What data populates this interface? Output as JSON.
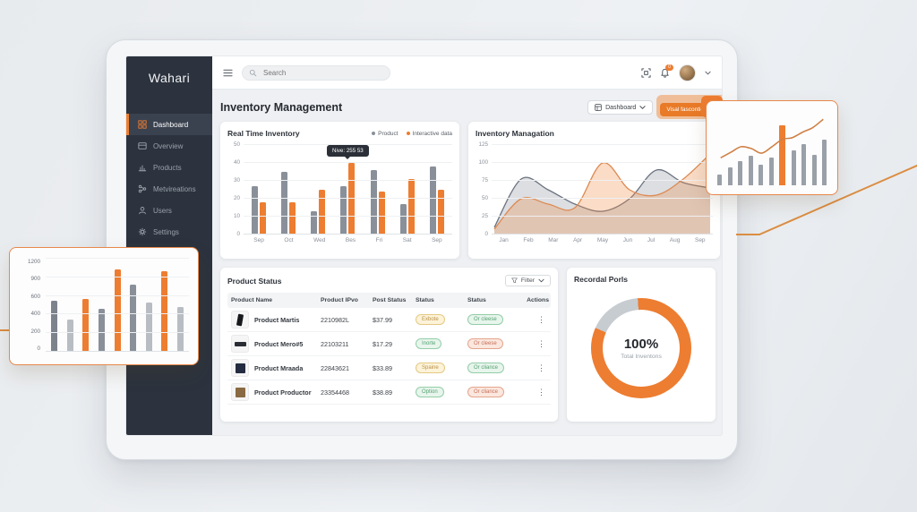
{
  "app": {
    "accent_color": "#ed7d31"
  },
  "sidebar": {
    "logo": "Wahari",
    "items": [
      {
        "label": "Dashboard",
        "icon": "grid-icon",
        "active": true
      },
      {
        "label": "Overview",
        "icon": "window-icon",
        "active": false
      },
      {
        "label": "Products",
        "icon": "bar-chart-icon",
        "active": false
      },
      {
        "label": "Metvireations",
        "icon": "share-icon",
        "active": false
      },
      {
        "label": "Users",
        "icon": "user-icon",
        "active": false
      },
      {
        "label": "Settings",
        "icon": "gear-icon",
        "active": false
      }
    ]
  },
  "topbar": {
    "search_placeholder": "Search",
    "notification_badge": "0"
  },
  "header": {
    "title": "Inventory Management",
    "dashboard_button": "Dashboard",
    "primary_button": "Visal fasconticon"
  },
  "product_status": {
    "title": "Product Status",
    "filter_label": "Filter",
    "columns": [
      "Product Name",
      "Product IPvo",
      "Post Status",
      "Status",
      "Status",
      "Actions"
    ],
    "rows": [
      {
        "name": "Product Martis",
        "ip": "2210982L",
        "post_status": "$37.99",
        "status1": {
          "label": "Exbote",
          "style": "yellow"
        },
        "status2": {
          "label": "Or cleese",
          "style": "green"
        },
        "thumb": {
          "color": "#17191d",
          "shape": "tall"
        }
      },
      {
        "name": "Product Mero#5",
        "ip": "22103211",
        "post_status": "$17.29",
        "status1": {
          "label": "Inorte",
          "style": "green"
        },
        "status2": {
          "label": "Or cleese",
          "style": "red"
        },
        "thumb": {
          "color": "#2a2d33",
          "shape": "wide"
        }
      },
      {
        "name": "Product Mraada",
        "ip": "22843621",
        "post_status": "$33.89",
        "status1": {
          "label": "Spaine",
          "style": "yellow"
        },
        "status2": {
          "label": "Or cliance",
          "style": "green"
        },
        "thumb": {
          "color": "#232c40",
          "shape": "square"
        }
      },
      {
        "name": "Product Productor",
        "ip": "23354468",
        "post_status": "$38.89",
        "status1": {
          "label": "Option",
          "style": "green"
        },
        "status2": {
          "label": "Or cliance",
          "style": "red"
        },
        "thumb": {
          "color": "#8a6a42",
          "shape": "square"
        }
      }
    ]
  },
  "recordal": {
    "title": "Recordal Porls",
    "value": "100%",
    "caption": "Total Inventons"
  },
  "chart_data": [
    {
      "id": "real_time_inventory",
      "type": "bar",
      "title": "Real Time Inventory",
      "categories": [
        "Sep",
        "Oct",
        "Wed",
        "Bes",
        "Fri",
        "Sat",
        "Sep"
      ],
      "series": [
        {
          "name": "Product",
          "color": "#8a9099",
          "values": [
            27,
            35,
            13,
            27,
            36,
            17,
            38
          ]
        },
        {
          "name": "Interactive data",
          "color": "#ed7d31",
          "values": [
            18,
            18,
            25,
            40,
            24,
            31,
            25
          ]
        }
      ],
      "ylim": [
        0,
        50
      ],
      "yticks": [
        0,
        10,
        20,
        30,
        40,
        50
      ],
      "legend_position": "top-right",
      "grid": true,
      "tooltip": {
        "text": "Nive: 255 53",
        "category_index": 3
      }
    },
    {
      "id": "inventory_managation",
      "type": "area",
      "title": "Inventory Managation",
      "categories": [
        "Jan",
        "Feb",
        "Mar",
        "Apr",
        "May",
        "Jun",
        "Jul",
        "Aug",
        "Sep"
      ],
      "series": [
        {
          "name": "Product",
          "color": "#6b727e",
          "fill": "rgba(130,138,150,0.28)",
          "values": [
            10,
            78,
            62,
            42,
            33,
            50,
            90,
            72,
            65
          ]
        },
        {
          "name": "Interactive data",
          "color": "#dd8a52",
          "fill": "rgba(238,140,70,0.30)",
          "values": [
            8,
            50,
            43,
            38,
            100,
            63,
            55,
            78,
            112
          ]
        }
      ],
      "ylim": [
        0,
        125
      ],
      "yticks": [
        0,
        25,
        50,
        75,
        100,
        125
      ],
      "grid": true
    },
    {
      "id": "recordal_porls",
      "type": "pie",
      "title": "Recordal Porls",
      "center_value": "100%",
      "center_caption": "Total Inventons",
      "arcs": [
        {
          "name": "filled",
          "color": "#ed7d31",
          "start_deg": 0,
          "end_deg": 294
        },
        {
          "name": "remainder",
          "color": "#c7ccd1",
          "start_deg": 294,
          "end_deg": 356
        },
        {
          "name": "filled-tail",
          "color": "#ed7d31",
          "start_deg": 356,
          "end_deg": 360
        }
      ]
    },
    {
      "id": "floating_left_bars",
      "type": "bar",
      "yticks": [
        1200,
        900,
        600,
        400,
        200,
        0
      ],
      "ylim": [
        0,
        1200
      ],
      "values": [
        660,
        420,
        680,
        550,
        1060,
        860,
        630,
        1040,
        580
      ],
      "colors": [
        "#7d838c",
        "#b8bdc3",
        "#ed7d31",
        "#8a9099",
        "#ed7d31",
        "#8a9099",
        "#b8bdc3",
        "#ed7d31",
        "#b8bdc3"
      ]
    },
    {
      "id": "floating_right_bars_line",
      "type": "bar",
      "ylim": [
        0,
        80
      ],
      "values": [
        12,
        20,
        26,
        32,
        22,
        30,
        65,
        38,
        45,
        33,
        50
      ],
      "highlight_index": 6,
      "bar_color": "#9aa0a8",
      "highlight_color": "#ed7d31",
      "line": [
        30,
        36,
        42,
        40,
        35,
        42,
        50,
        52,
        58,
        63,
        72
      ],
      "line_color": "#cf8045"
    }
  ]
}
